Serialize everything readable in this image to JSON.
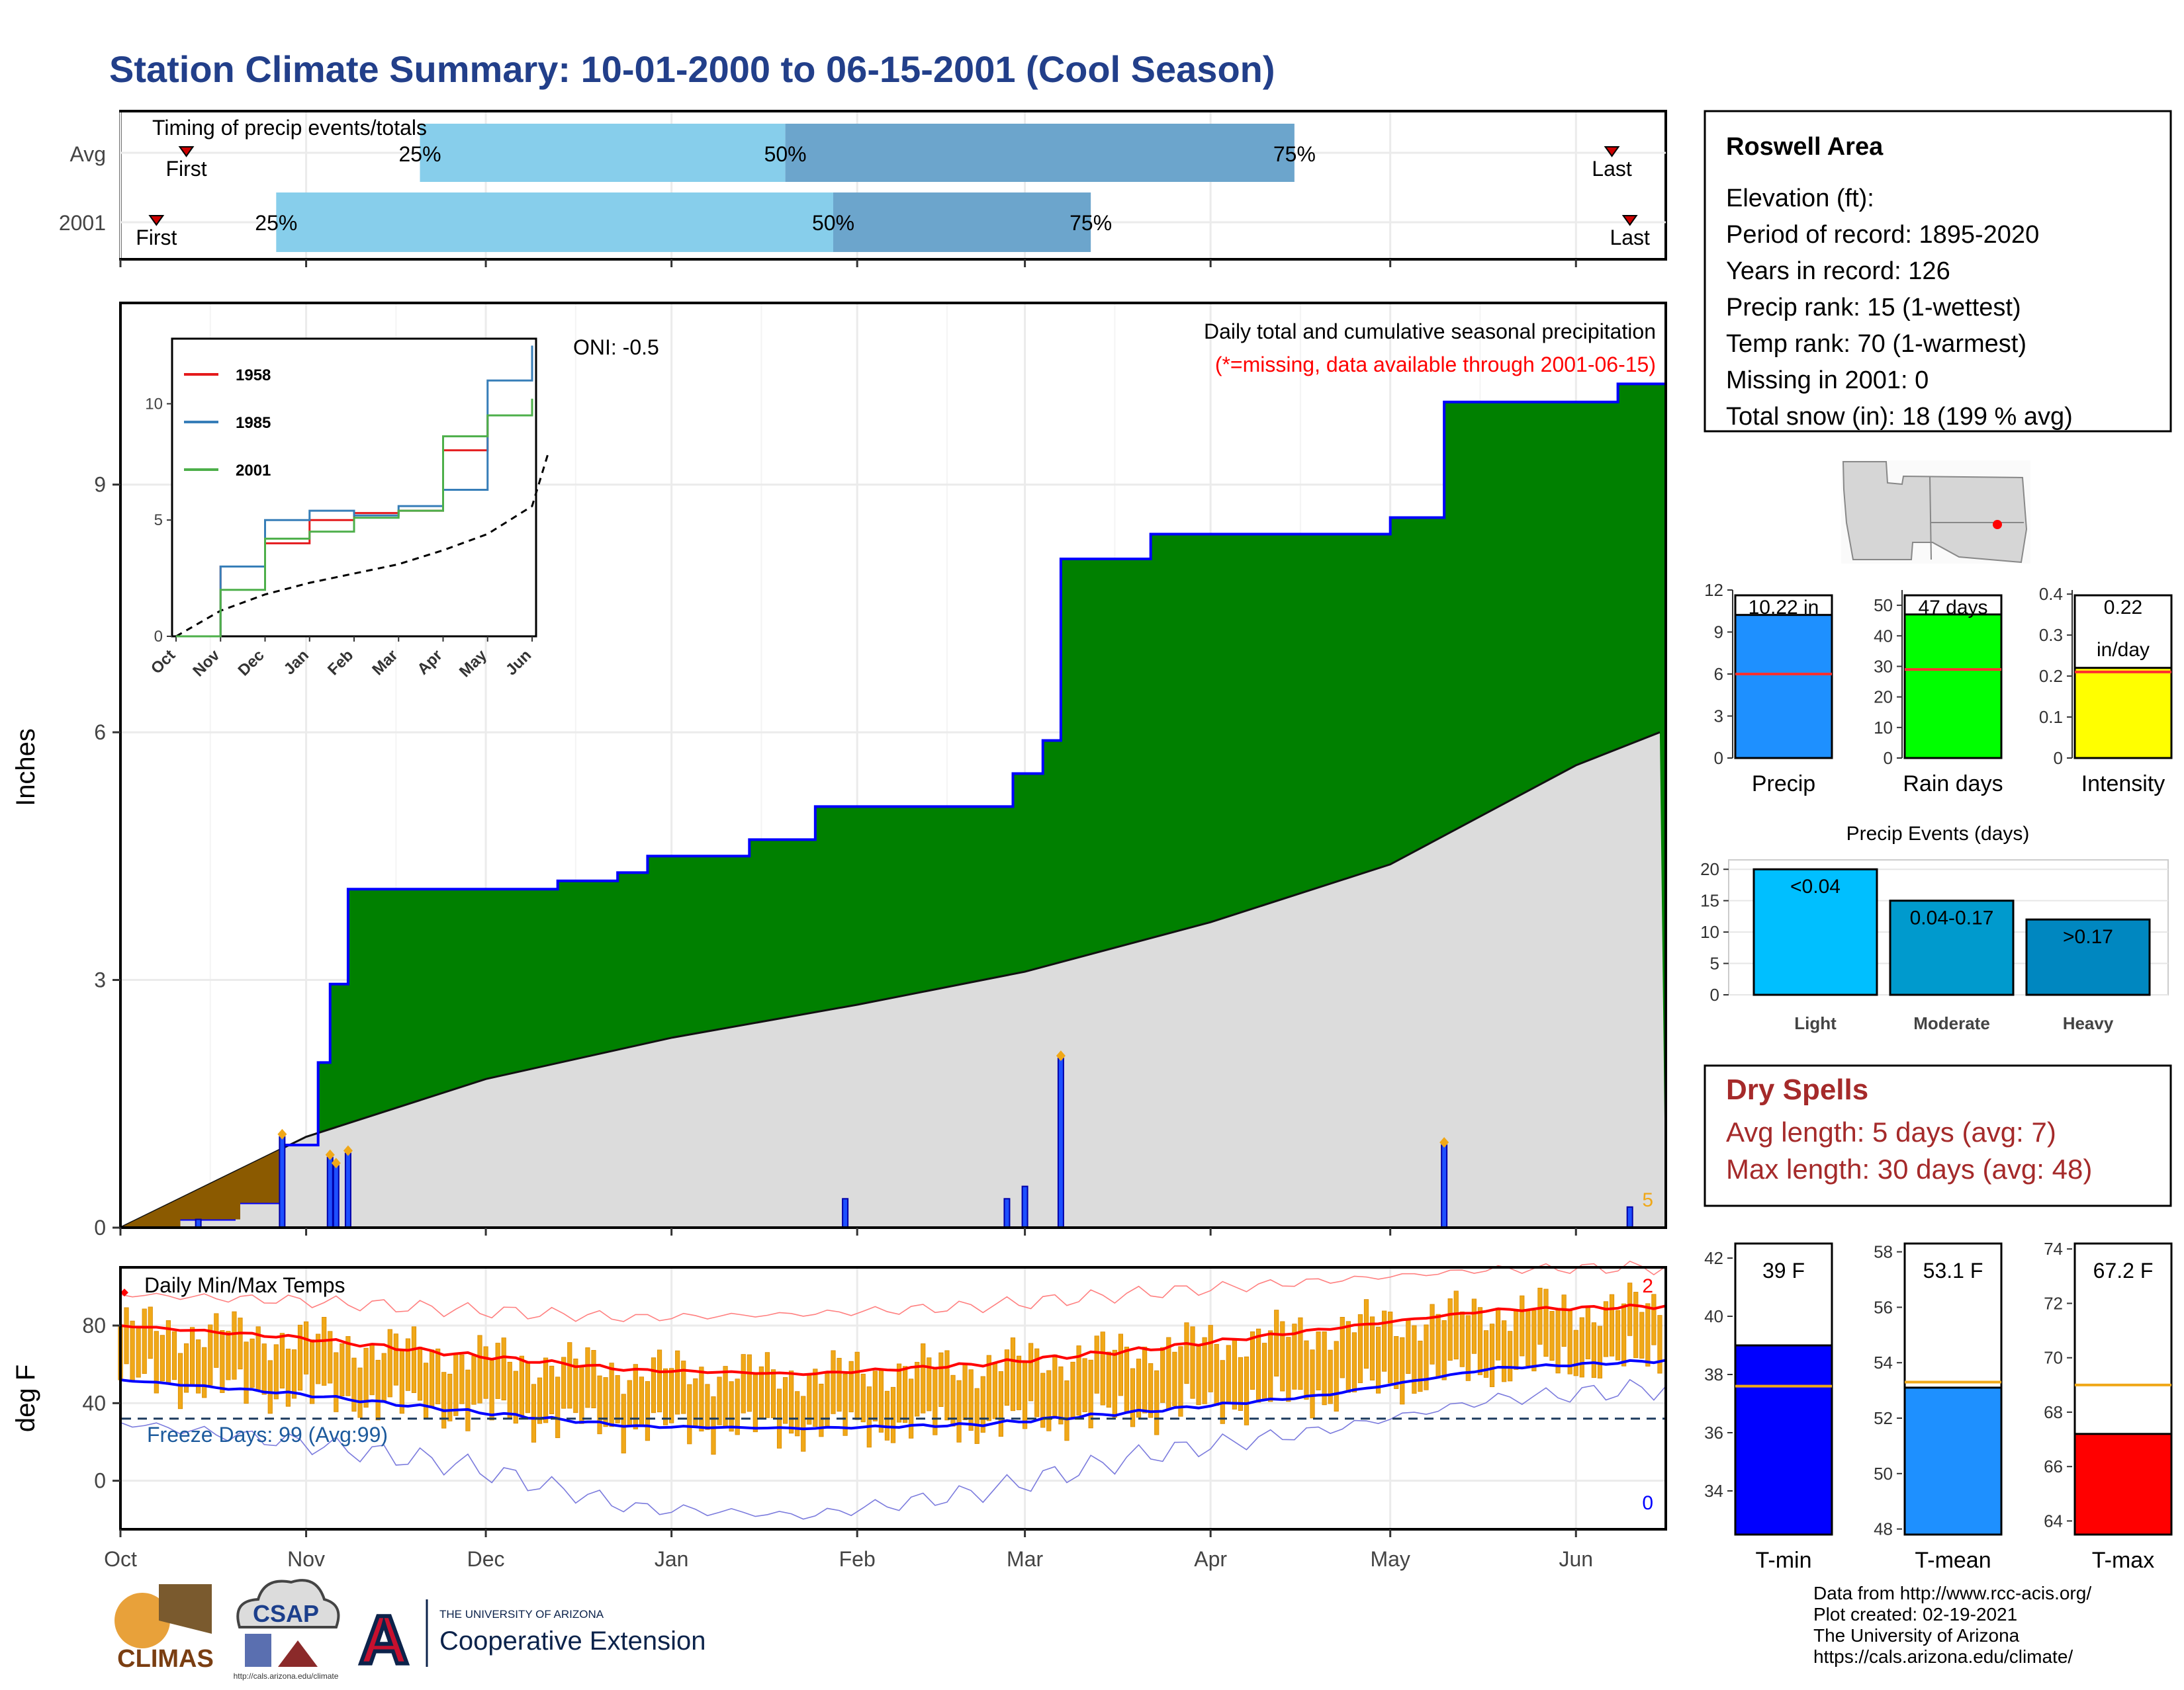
{
  "title": "Station Climate Summary: 10-01-2000 to 06-15-2001 (Cool Season)",
  "timing_panel": {
    "title": "Timing of precip events/totals",
    "rows": [
      "Avg",
      "2001"
    ],
    "pct_labels": [
      "25%",
      "50%",
      "75%"
    ],
    "first_label": "First",
    "last_label": "Last",
    "avg": {
      "first": "Oct 12",
      "p25": "Nov 20",
      "p50": "Jan 20",
      "p75": "Apr 15",
      "last": "Jun 7"
    },
    "y2001": {
      "first": "Oct 7",
      "p25": "Oct 27",
      "p50": "Jan 28",
      "p75": "Mar 12",
      "last": "Jun 10"
    }
  },
  "precip_panel": {
    "ylabel": "Inches",
    "y_ticks": [
      0,
      3,
      6,
      9
    ],
    "ylim": [
      0,
      11.2
    ],
    "annotation": "Daily total and cumulative seasonal precipitation",
    "missing_note": "(*=missing, data available through 2001-06-15)",
    "oni": "ONI: -0.5",
    "missing_count": "5"
  },
  "inset": {
    "y_ticks": [
      0,
      5,
      10
    ],
    "x_ticks": [
      "Oct",
      "Nov",
      "Dec",
      "Jan",
      "Feb",
      "Mar",
      "Apr",
      "May",
      "Jun"
    ],
    "legend": [
      {
        "name": "1958",
        "color": "#e41a1c"
      },
      {
        "name": "1985",
        "color": "#377eb8"
      },
      {
        "name": "2001",
        "color": "#4daf4a"
      }
    ]
  },
  "temp_panel": {
    "title": "Daily Min/Max Temps",
    "ylabel": "deg F",
    "y_ticks": [
      0,
      40,
      80
    ],
    "freeze_label": "Freeze Days: 99 (Avg:99)",
    "count_top": "2",
    "count_bottom": "0"
  },
  "x_ticks": [
    "Oct",
    "Nov",
    "Dec",
    "Jan",
    "Feb",
    "Mar",
    "Apr",
    "May",
    "Jun"
  ],
  "info_box": {
    "station": "Roswell Area",
    "lines": [
      "Elevation (ft):",
      "Period of record: 1895-2020",
      "Years in record: 126",
      "Precip rank: 15 (1-wettest)",
      "Temp rank: 70 (1-warmest)",
      "Missing in 2001: 0",
      "Total snow (in): 18 (199 % avg)"
    ]
  },
  "mini_bars": [
    {
      "label": "Precip",
      "value_text": "10.22 in",
      "value": 10.22,
      "avg": 6.0,
      "ylim": [
        0,
        12
      ],
      "ticks": [
        0,
        3,
        6,
        9,
        12
      ],
      "color": "#1e90ff"
    },
    {
      "label": "Rain days",
      "value_text": "47 days",
      "value": 47,
      "avg": 29,
      "ylim": [
        0,
        55
      ],
      "ticks": [
        0,
        10,
        20,
        30,
        40,
        50
      ],
      "color": "#00ff00"
    },
    {
      "label": "Intensity",
      "value_text": "0.22",
      "value_text2": "in/day",
      "value": 0.22,
      "avg": 0.21,
      "ylim": [
        0,
        0.41
      ],
      "ticks": [
        0.0,
        0.1,
        0.2,
        0.3,
        0.4
      ],
      "color": "#ffff00"
    }
  ],
  "events_chart": {
    "title": "Precip Events (days)",
    "categories": [
      "Light",
      "Moderate",
      "Heavy"
    ],
    "bar_labels": [
      "<0.04",
      "0.04-0.17",
      ">0.17"
    ],
    "values": [
      20,
      15,
      12
    ],
    "ticks": [
      0,
      5,
      10,
      15,
      20
    ],
    "colors": [
      "#00bfff",
      "#009acd",
      "#0087c0"
    ]
  },
  "dry_spells": {
    "title": "Dry Spells",
    "lines": [
      "Avg length: 5 days (avg: 7)",
      "Max length: 30 days (avg: 48)"
    ]
  },
  "temp_bars": [
    {
      "label": "T-min",
      "value_text": "39 F",
      "value": 39.0,
      "avg": 37.6,
      "ylim": [
        32.5,
        42.5
      ],
      "ticks": [
        34,
        36,
        38,
        40,
        42
      ],
      "color": "#0000ff"
    },
    {
      "label": "T-mean",
      "value_text": "53.1 F",
      "value": 53.1,
      "avg": 53.3,
      "ylim": [
        47.8,
        58.3
      ],
      "ticks": [
        48,
        50,
        52,
        54,
        56,
        58
      ],
      "color": "#1e90ff"
    },
    {
      "label": "T-max",
      "value_text": "67.2 F",
      "value": 67.2,
      "avg": 69.0,
      "ylim": [
        63.5,
        74.2
      ],
      "ticks": [
        64,
        66,
        68,
        70,
        72,
        74
      ],
      "color": "#ff0000"
    }
  ],
  "footer": {
    "credit_lines": [
      "Data from http://www.rcc-acis.org/",
      "Plot created: 02-19-2021",
      "The University of Arizona",
      "https://cals.arizona.edu/climate/"
    ],
    "logo_climas": "CLIMAS",
    "logo_csap": "CSAP",
    "csap_url": "http://cals.arizona.edu/climate",
    "ua_small": "THE UNIVERSITY OF ARIZONA",
    "ua_big": "Cooperative Extension"
  },
  "colors": {
    "title": "#223f8a",
    "green": "#008000",
    "blue": "#0000ff",
    "orange": "#f0a818",
    "dry_red": "#a52a2a",
    "gray": "#e0e0e0"
  },
  "chart_data": [
    {
      "type": "area",
      "title": "Daily total and cumulative seasonal precipitation",
      "ylabel": "Inches",
      "ylim": [
        0,
        11.2
      ],
      "series": [
        {
          "values_x": [
            "Oct 1",
            "Oct 10",
            "Oct 20",
            "Oct 28",
            "Nov 3",
            "Nov 5",
            "Nov 8",
            "Dec 13",
            "Dec 23",
            "Dec 28",
            "Jan 14",
            "Jan 25",
            "Feb 27",
            "Mar 4",
            "Mar 7",
            "Mar 22",
            "May 1",
            "May 10",
            "Jun 8",
            "Jun 15"
          ],
          "values": [
            0.0,
            0.1,
            0.3,
            1.0,
            2.0,
            2.95,
            4.1,
            4.2,
            4.3,
            4.5,
            4.7,
            5.1,
            5.5,
            5.9,
            8.1,
            8.4,
            8.6,
            10.0,
            10.22,
            10.22
          ]
        },
        {
          "name": "avg",
          "values_x": [
            "Oct 1",
            "Nov 1",
            "Dec 1",
            "Jan 1",
            "Feb 1",
            "Mar 1",
            "Apr 1",
            "May 1",
            "Jun 1",
            "Jun 15"
          ],
          "values": [
            0.0,
            1.1,
            1.8,
            2.3,
            2.7,
            3.1,
            3.7,
            4.4,
            5.6,
            6.0
          ]
        }
      ],
      "daily_bars": {
        "dates": [
          "Oct 14",
          "Oct 28",
          "Nov 5",
          "Nov 6",
          "Nov 8",
          "Jan 30",
          "Feb 26",
          "Mar 1",
          "Mar 7",
          "May 10",
          "Jun 10"
        ],
        "values": [
          0.1,
          1.1,
          0.85,
          0.75,
          0.9,
          0.35,
          0.35,
          0.5,
          2.05,
          1.0,
          0.25
        ]
      }
    },
    {
      "type": "line",
      "title": "",
      "x_ticks": [
        "Oct",
        "Nov",
        "Dec",
        "Jan",
        "Feb",
        "Mar",
        "Apr",
        "May",
        "Jun"
      ],
      "series": [
        {
          "name": "1958",
          "values_x": [
            "Oct",
            "Nov",
            "Dec",
            "Jan",
            "Feb",
            "Mar",
            "Apr",
            "May",
            "Jun"
          ],
          "values": [
            0,
            3.0,
            4.0,
            5.0,
            5.3,
            5.4,
            8.0,
            9.5,
            10.0
          ]
        },
        {
          "name": "1985",
          "values_x": [
            "Oct",
            "Nov",
            "Dec",
            "Jan",
            "Feb",
            "Mar",
            "Apr",
            "May",
            "Jun"
          ],
          "values": [
            0,
            3.0,
            5.0,
            5.4,
            5.2,
            5.6,
            6.3,
            11.0,
            12.5
          ]
        },
        {
          "name": "2001",
          "values_x": [
            "Oct",
            "Nov",
            "Dec",
            "Jan",
            "Feb",
            "Mar",
            "Apr",
            "May",
            "Jun"
          ],
          "values": [
            0,
            2.0,
            4.2,
            4.5,
            5.1,
            5.4,
            8.6,
            9.5,
            10.22
          ]
        }
      ]
    },
    {
      "type": "line",
      "title": "Daily Min/Max Temps",
      "ylabel": "deg F",
      "ylim": [
        -25,
        110
      ],
      "x_ticks": [
        "Oct",
        "Nov",
        "Dec",
        "Jan",
        "Feb",
        "Mar",
        "Apr",
        "May",
        "Jun"
      ],
      "series": [
        {
          "name": "avg max",
          "values": [
            80,
            74,
            65,
            57,
            55,
            60,
            68,
            78,
            88,
            90
          ]
        },
        {
          "name": "avg min",
          "values": [
            52,
            45,
            36,
            28,
            27,
            29,
            36,
            44,
            58,
            62
          ]
        },
        {
          "name": "record max",
          "values": [
            96,
            93,
            88,
            84,
            86,
            90,
            97,
            103,
            109,
            110
          ]
        },
        {
          "name": "record min",
          "values": [
            30,
            20,
            8,
            -14,
            -18,
            -6,
            14,
            26,
            42,
            48
          ]
        }
      ],
      "freeze_line": 32
    }
  ]
}
